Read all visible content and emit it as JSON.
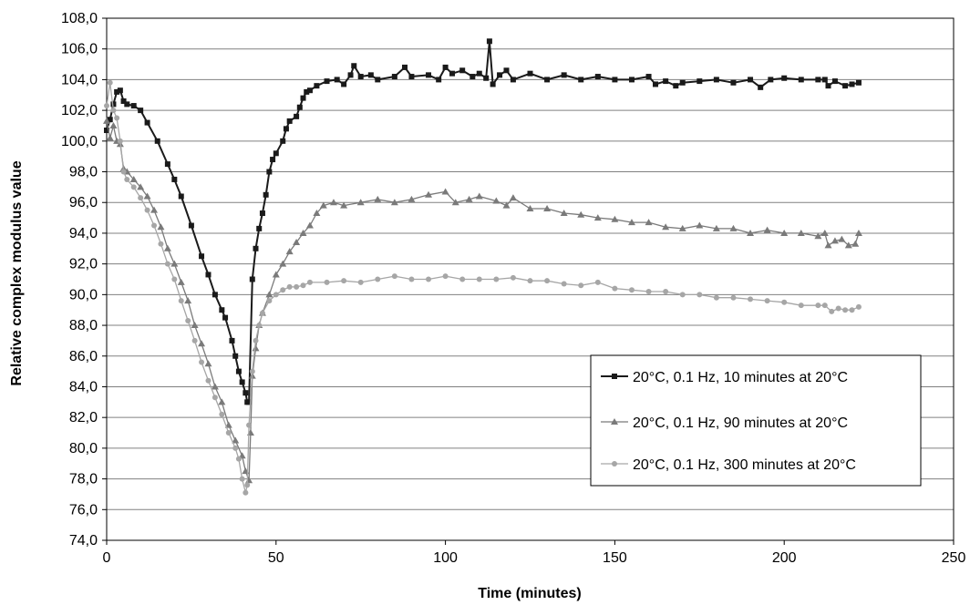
{
  "chart_data": {
    "type": "line",
    "xlabel": "Time (minutes)",
    "ylabel": "Relative complex modulus value",
    "xlim": [
      0,
      250
    ],
    "ylim": [
      74,
      108
    ],
    "x_ticks": [
      0,
      50,
      100,
      150,
      200,
      250
    ],
    "y_ticks": [
      "74,0",
      "76,0",
      "78,0",
      "80,0",
      "82,0",
      "84,0",
      "86,0",
      "88,0",
      "90,0",
      "92,0",
      "94,0",
      "96,0",
      "98,0",
      "100,0",
      "102,0",
      "104,0",
      "106,0",
      "108,0"
    ],
    "grid": "horizontal",
    "legend_position": "right",
    "colors": {
      "series1": "#1a1a1a",
      "series2": "#7a7a7a",
      "series3": "#a6a6a6",
      "grid": "#808080"
    },
    "series": [
      {
        "name": "20°C, 0.1 Hz, 10 minutes at 20°C",
        "marker": "square",
        "points": [
          [
            0,
            100.7
          ],
          [
            1,
            101.4
          ],
          [
            2,
            102.4
          ],
          [
            3,
            103.2
          ],
          [
            4,
            103.3
          ],
          [
            5,
            102.6
          ],
          [
            6,
            102.4
          ],
          [
            8,
            102.3
          ],
          [
            10,
            102.0
          ],
          [
            12,
            101.2
          ],
          [
            15,
            100.0
          ],
          [
            18,
            98.5
          ],
          [
            20,
            97.5
          ],
          [
            22,
            96.4
          ],
          [
            25,
            94.5
          ],
          [
            28,
            92.5
          ],
          [
            30,
            91.3
          ],
          [
            32,
            90.0
          ],
          [
            34,
            89.0
          ],
          [
            35,
            88.5
          ],
          [
            37,
            87.0
          ],
          [
            38,
            86.0
          ],
          [
            39,
            85.0
          ],
          [
            40,
            84.3
          ],
          [
            41,
            83.6
          ],
          [
            41.5,
            83.0
          ],
          [
            42,
            83.0
          ],
          [
            43,
            91.0
          ],
          [
            44,
            93.0
          ],
          [
            45,
            94.3
          ],
          [
            46,
            95.3
          ],
          [
            47,
            96.5
          ],
          [
            48,
            98.0
          ],
          [
            49,
            98.8
          ],
          [
            50,
            99.2
          ],
          [
            52,
            100.0
          ],
          [
            53,
            100.8
          ],
          [
            54,
            101.3
          ],
          [
            56,
            101.6
          ],
          [
            57,
            102.2
          ],
          [
            58,
            102.8
          ],
          [
            59,
            103.2
          ],
          [
            60,
            103.3
          ],
          [
            62,
            103.6
          ],
          [
            65,
            103.9
          ],
          [
            68,
            104.0
          ],
          [
            70,
            103.7
          ],
          [
            72,
            104.3
          ],
          [
            73,
            104.9
          ],
          [
            75,
            104.2
          ],
          [
            78,
            104.3
          ],
          [
            80,
            104.0
          ],
          [
            85,
            104.2
          ],
          [
            88,
            104.8
          ],
          [
            90,
            104.2
          ],
          [
            95,
            104.3
          ],
          [
            98,
            104.0
          ],
          [
            100,
            104.8
          ],
          [
            102,
            104.4
          ],
          [
            105,
            104.6
          ],
          [
            108,
            104.2
          ],
          [
            110,
            104.4
          ],
          [
            112,
            104.1
          ],
          [
            113,
            106.5
          ],
          [
            114,
            103.7
          ],
          [
            116,
            104.3
          ],
          [
            118,
            104.6
          ],
          [
            120,
            104.0
          ],
          [
            125,
            104.4
          ],
          [
            130,
            104.0
          ],
          [
            135,
            104.3
          ],
          [
            140,
            104.0
          ],
          [
            145,
            104.2
          ],
          [
            150,
            104.0
          ],
          [
            155,
            104.0
          ],
          [
            160,
            104.2
          ],
          [
            162,
            103.7
          ],
          [
            165,
            103.9
          ],
          [
            168,
            103.6
          ],
          [
            170,
            103.8
          ],
          [
            175,
            103.9
          ],
          [
            180,
            104.0
          ],
          [
            185,
            103.8
          ],
          [
            190,
            104.0
          ],
          [
            193,
            103.5
          ],
          [
            196,
            104.0
          ],
          [
            200,
            104.1
          ],
          [
            205,
            104.0
          ],
          [
            210,
            104.0
          ],
          [
            212,
            104.0
          ],
          [
            213,
            103.6
          ],
          [
            215,
            103.9
          ],
          [
            218,
            103.6
          ],
          [
            220,
            103.7
          ],
          [
            222,
            103.8
          ]
        ]
      },
      {
        "name": "20°C, 0.1 Hz, 90 minutes at 20°C",
        "marker": "triangle",
        "points": [
          [
            0,
            101.3
          ],
          [
            1,
            100.2
          ],
          [
            2,
            101.0
          ],
          [
            3,
            100.0
          ],
          [
            4,
            99.8
          ],
          [
            5,
            98.2
          ],
          [
            6,
            98.0
          ],
          [
            8,
            97.5
          ],
          [
            10,
            97.0
          ],
          [
            12,
            96.4
          ],
          [
            14,
            95.5
          ],
          [
            16,
            94.4
          ],
          [
            18,
            93.0
          ],
          [
            20,
            92.0
          ],
          [
            22,
            90.8
          ],
          [
            24,
            89.6
          ],
          [
            26,
            88.0
          ],
          [
            28,
            86.8
          ],
          [
            30,
            85.5
          ],
          [
            32,
            84.0
          ],
          [
            34,
            83.0
          ],
          [
            36,
            81.5
          ],
          [
            38,
            80.5
          ],
          [
            40,
            79.5
          ],
          [
            41,
            78.5
          ],
          [
            42,
            77.9
          ],
          [
            42.5,
            81.0
          ],
          [
            43,
            84.7
          ],
          [
            44,
            86.5
          ],
          [
            45,
            88.0
          ],
          [
            46,
            88.8
          ],
          [
            48,
            90.0
          ],
          [
            50,
            91.3
          ],
          [
            52,
            92.0
          ],
          [
            54,
            92.8
          ],
          [
            56,
            93.4
          ],
          [
            58,
            94.0
          ],
          [
            60,
            94.5
          ],
          [
            62,
            95.3
          ],
          [
            64,
            95.8
          ],
          [
            67,
            96.0
          ],
          [
            70,
            95.8
          ],
          [
            75,
            96.0
          ],
          [
            80,
            96.2
          ],
          [
            85,
            96.0
          ],
          [
            90,
            96.2
          ],
          [
            95,
            96.5
          ],
          [
            100,
            96.7
          ],
          [
            103,
            96.0
          ],
          [
            107,
            96.2
          ],
          [
            110,
            96.4
          ],
          [
            115,
            96.1
          ],
          [
            118,
            95.8
          ],
          [
            120,
            96.3
          ],
          [
            125,
            95.6
          ],
          [
            130,
            95.6
          ],
          [
            135,
            95.3
          ],
          [
            140,
            95.2
          ],
          [
            145,
            95.0
          ],
          [
            150,
            94.9
          ],
          [
            155,
            94.7
          ],
          [
            160,
            94.7
          ],
          [
            165,
            94.4
          ],
          [
            170,
            94.3
          ],
          [
            175,
            94.5
          ],
          [
            180,
            94.3
          ],
          [
            185,
            94.3
          ],
          [
            190,
            94.0
          ],
          [
            195,
            94.2
          ],
          [
            200,
            94.0
          ],
          [
            205,
            94.0
          ],
          [
            210,
            93.8
          ],
          [
            212,
            94.0
          ],
          [
            213,
            93.2
          ],
          [
            215,
            93.5
          ],
          [
            217,
            93.6
          ],
          [
            219,
            93.2
          ],
          [
            221,
            93.3
          ],
          [
            222,
            94.0
          ]
        ]
      },
      {
        "name": "20°C, 0.1 Hz, 300 minutes at 20°C",
        "marker": "circle",
        "points": [
          [
            0,
            102.3
          ],
          [
            1,
            103.8
          ],
          [
            2,
            102.0
          ],
          [
            3,
            101.5
          ],
          [
            4,
            100.0
          ],
          [
            5,
            98.0
          ],
          [
            6,
            97.5
          ],
          [
            8,
            97.0
          ],
          [
            10,
            96.3
          ],
          [
            12,
            95.5
          ],
          [
            14,
            94.5
          ],
          [
            16,
            93.3
          ],
          [
            18,
            92.0
          ],
          [
            20,
            91.0
          ],
          [
            22,
            89.6
          ],
          [
            24,
            88.3
          ],
          [
            26,
            87.0
          ],
          [
            28,
            85.6
          ],
          [
            30,
            84.4
          ],
          [
            32,
            83.3
          ],
          [
            34,
            82.2
          ],
          [
            36,
            81.0
          ],
          [
            38,
            80.0
          ],
          [
            39,
            79.3
          ],
          [
            40,
            78.0
          ],
          [
            41,
            77.1
          ],
          [
            41.5,
            77.6
          ],
          [
            42,
            81.5
          ],
          [
            43,
            85.0
          ],
          [
            44,
            87.0
          ],
          [
            45,
            88.0
          ],
          [
            46,
            88.8
          ],
          [
            48,
            89.6
          ],
          [
            50,
            90.0
          ],
          [
            52,
            90.3
          ],
          [
            54,
            90.5
          ],
          [
            56,
            90.5
          ],
          [
            58,
            90.6
          ],
          [
            60,
            90.8
          ],
          [
            65,
            90.8
          ],
          [
            70,
            90.9
          ],
          [
            75,
            90.8
          ],
          [
            80,
            91.0
          ],
          [
            85,
            91.2
          ],
          [
            90,
            91.0
          ],
          [
            95,
            91.0
          ],
          [
            100,
            91.2
          ],
          [
            105,
            91.0
          ],
          [
            110,
            91.0
          ],
          [
            115,
            91.0
          ],
          [
            120,
            91.1
          ],
          [
            125,
            90.9
          ],
          [
            130,
            90.9
          ],
          [
            135,
            90.7
          ],
          [
            140,
            90.6
          ],
          [
            145,
            90.8
          ],
          [
            150,
            90.4
          ],
          [
            155,
            90.3
          ],
          [
            160,
            90.2
          ],
          [
            165,
            90.2
          ],
          [
            170,
            90.0
          ],
          [
            175,
            90.0
          ],
          [
            180,
            89.8
          ],
          [
            185,
            89.8
          ],
          [
            190,
            89.7
          ],
          [
            195,
            89.6
          ],
          [
            200,
            89.5
          ],
          [
            205,
            89.3
          ],
          [
            210,
            89.3
          ],
          [
            212,
            89.3
          ],
          [
            214,
            88.9
          ],
          [
            216,
            89.1
          ],
          [
            218,
            89.0
          ],
          [
            220,
            89.0
          ],
          [
            222,
            89.2
          ]
        ]
      }
    ]
  }
}
